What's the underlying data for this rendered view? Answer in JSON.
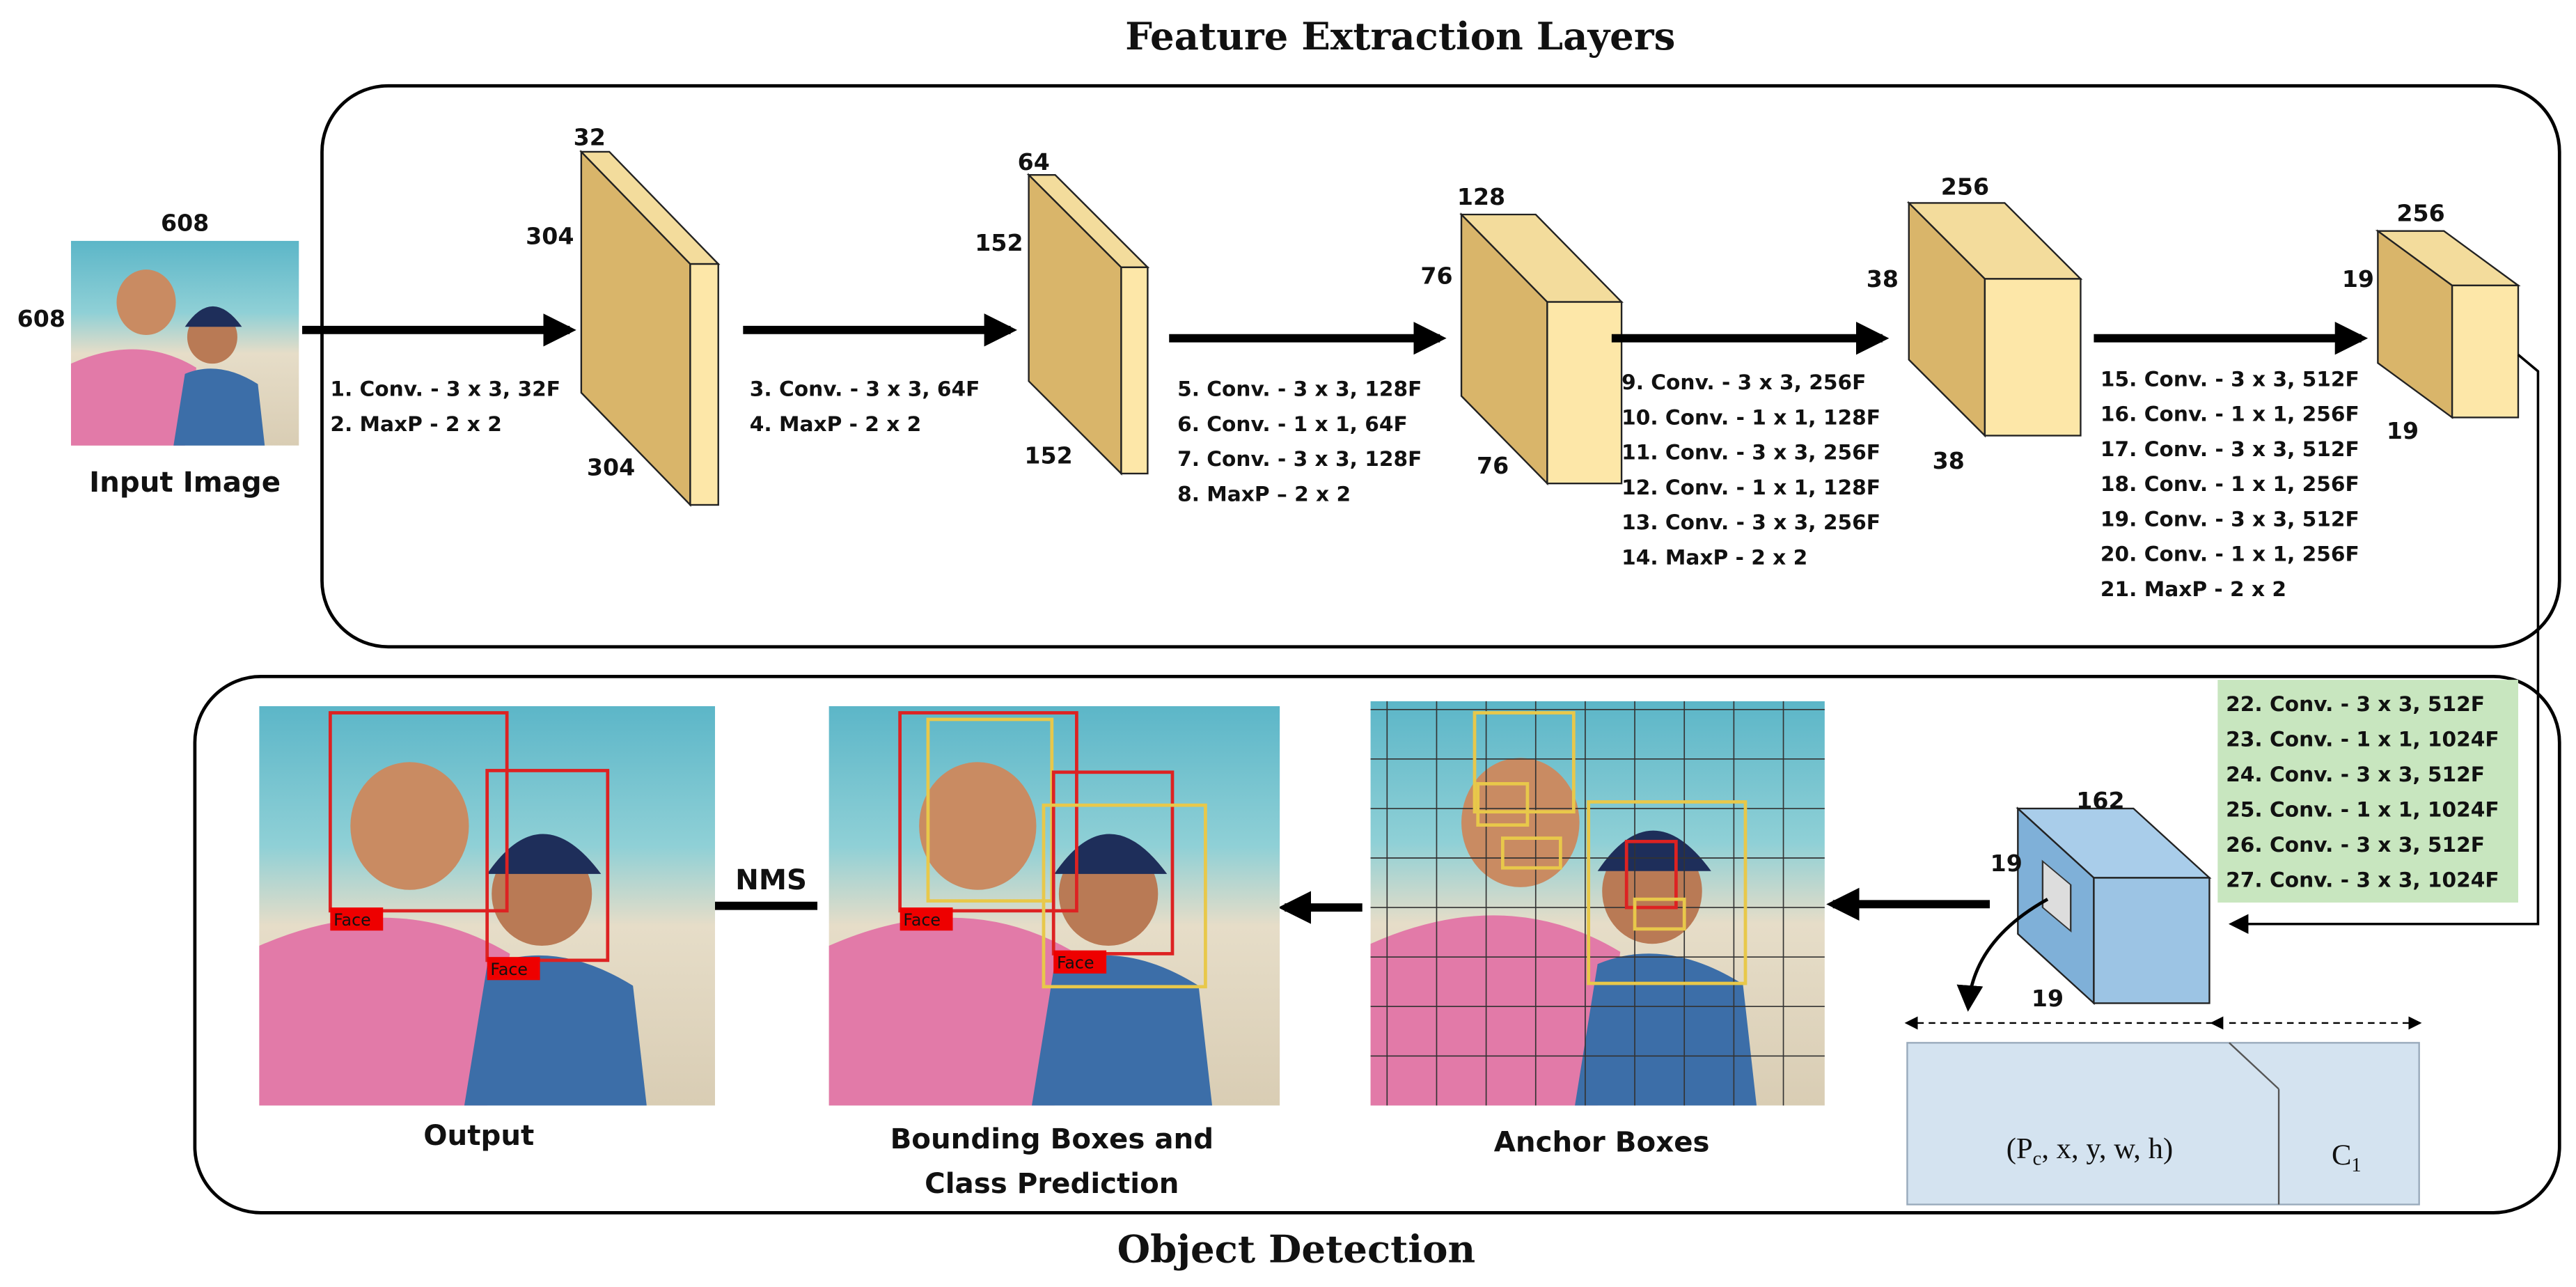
{
  "title": "Feature Extraction Layers",
  "bottom_title": "Object Detection",
  "input": {
    "label": "Input Image",
    "width": "608",
    "height": "608"
  },
  "blocks": [
    {
      "depth": "32",
      "height": "304",
      "width": "304",
      "layers": [
        "1. Conv. -  3 x 3, 32F",
        "2. MaxP - 2 x 2"
      ]
    },
    {
      "depth": "64",
      "height": "152",
      "width": "152",
      "layers": [
        "3. Conv. -  3 x 3, 64F",
        "4. MaxP - 2 x 2"
      ]
    },
    {
      "depth": "128",
      "height": "76",
      "width": "76",
      "layers": [
        "5. Conv. -  3 x 3, 128F",
        "6. Conv. -  1 x 1, 64F",
        "7. Conv. -  3 x 3, 128F",
        "8. MaxP – 2 x 2"
      ]
    },
    {
      "depth": "256",
      "height": "38",
      "width": "38",
      "layers": [
        "9. Conv. -  3 x 3, 256F",
        "10. Conv. -  1 x 1, 128F",
        "11. Conv. - 3 x 3, 256F",
        "12. Conv. - 1 x 1, 128F",
        "13. Conv. - 3 x 3, 256F",
        "14. MaxP - 2 x 2"
      ]
    },
    {
      "depth": "256",
      "height": "19",
      "width": "19",
      "layers": [
        "15. Conv. -  3 x 3, 512F",
        "16. Conv. -  1 x 1, 256F",
        "17. Conv. - 3 x 3, 512F",
        "18. Conv. - 1 x 1, 256F",
        "19. Conv. - 3 x 3, 512F",
        "20. Conv. - 1 x 1, 256F",
        "21. MaxP - 2 x 2"
      ]
    }
  ],
  "detection_layers": [
    "22. Conv. -  3 x 3, 512F",
    "23. Conv. -  1 x 1, 1024F",
    "24. Conv. - 3 x 3, 512F",
    "25. Conv. - 1 x 1, 1024F",
    "26. Conv. - 3 x 3, 512F",
    "27. Conv. - 3 x 3, 1024F"
  ],
  "output_tensor": {
    "depth": "162",
    "height": "19",
    "width": "19",
    "box_prefix": "(P",
    "box_subscript": "c",
    "box_suffix": ", x, y, w, h)",
    "class_prefix": "C",
    "class_subscript": "1"
  },
  "stages": {
    "anchor": "Anchor Boxes",
    "boxes": [
      "Bounding Boxes and",
      "Class Prediction"
    ],
    "nms": "NMS",
    "output": "Output",
    "face_label": "Face"
  }
}
